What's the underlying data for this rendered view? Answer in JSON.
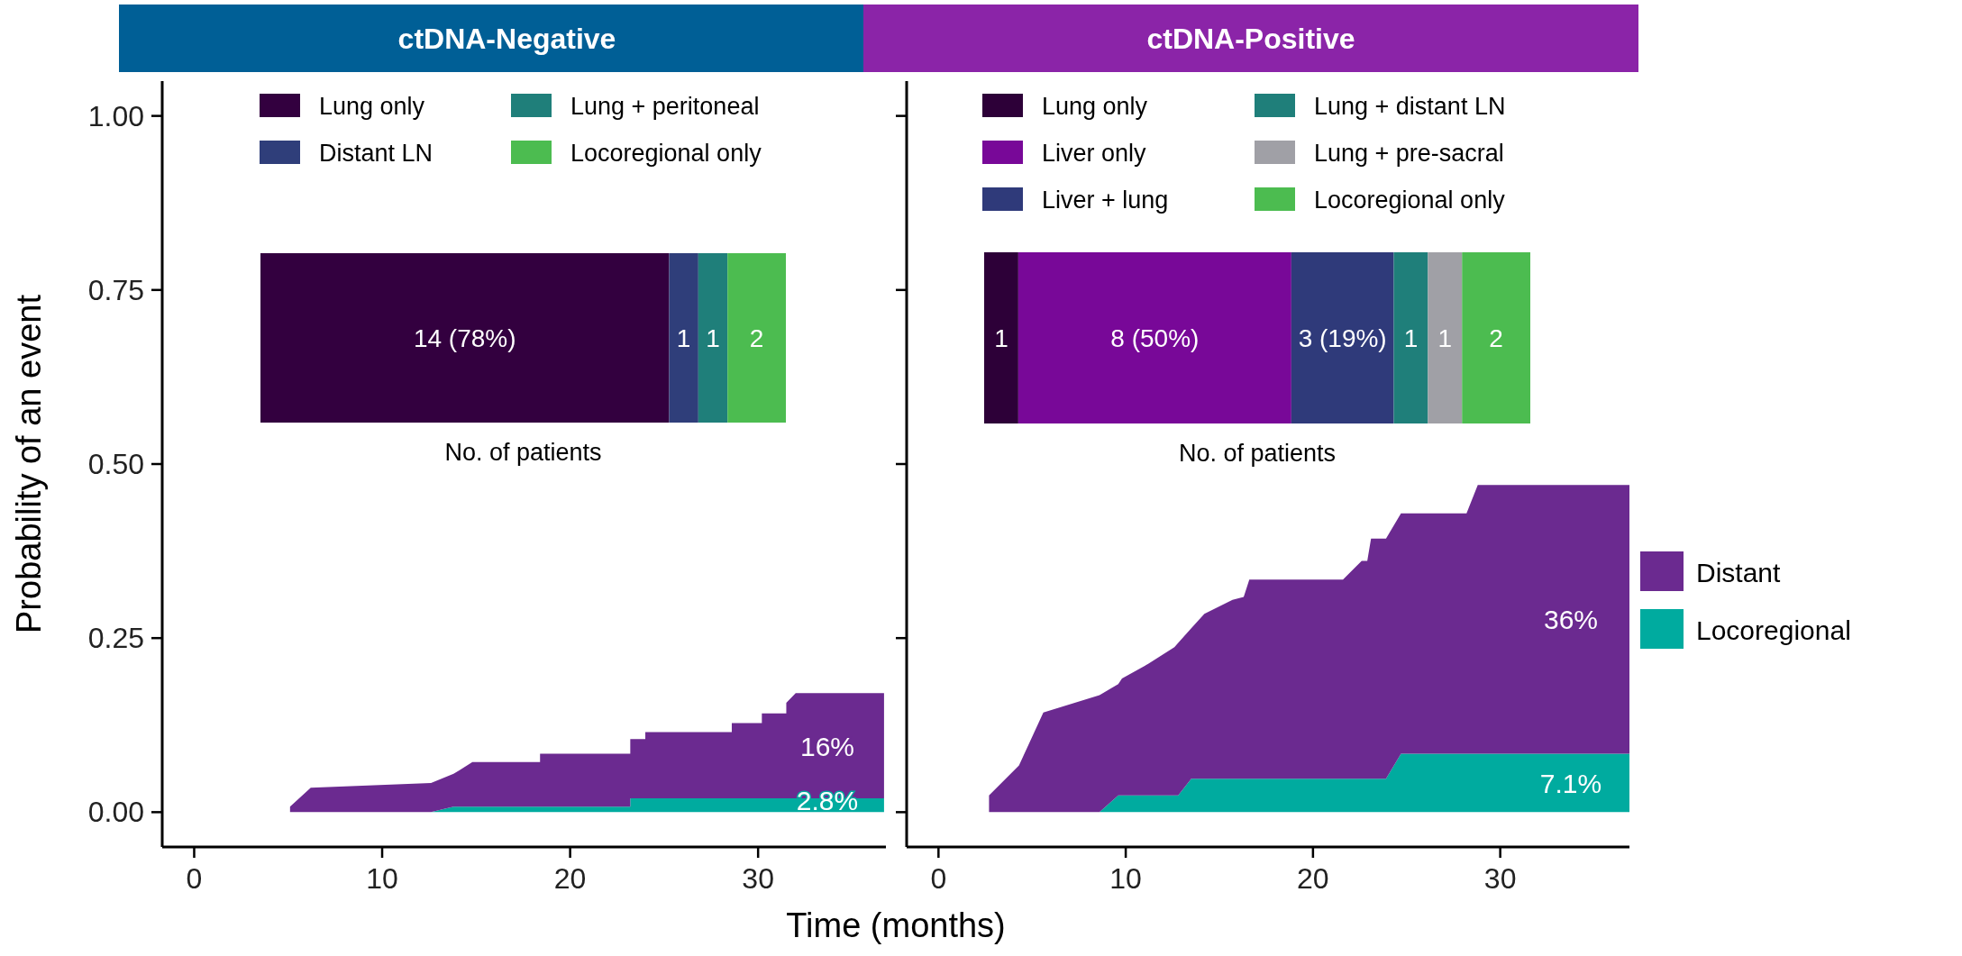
{
  "chart_data": [
    {
      "type": "area",
      "title": "ctDNA-Negative",
      "xlabel": "Time (months)",
      "ylabel": "Probability of an event",
      "stacked": true,
      "legend": false,
      "x": [
        5.1,
        6.2,
        12.6,
        13.8,
        14.8,
        18.4,
        18.4,
        23.2,
        23.2,
        24.0,
        24.0,
        28.6,
        28.6,
        30.2,
        30.2,
        31.5,
        31.5,
        32.0,
        36.7
      ],
      "series": [
        {
          "color": "#00ab9f",
          "values": [
            0,
            0,
            0,
            0.008,
            0.008,
            0.008,
            0.008,
            0.008,
            0.02,
            0.02,
            0.02,
            0.02,
            0.02,
            0.02,
            0.02,
            0.02,
            0.02,
            0.02,
            0.02
          ]
        },
        {
          "color": "#6b2a90",
          "values": [
            0.008,
            0.035,
            0.042,
            0.047,
            0.064,
            0.064,
            0.076,
            0.076,
            0.085,
            0.085,
            0.095,
            0.095,
            0.108,
            0.108,
            0.122,
            0.122,
            0.137,
            0.151,
            0.151
          ]
        }
      ],
      "xlim": [
        -1.7,
        36.8
      ],
      "ylim": [
        -0.05,
        1.05
      ],
      "xticks": [
        0,
        10,
        20,
        30
      ],
      "yticks": [
        {
          "value": 0,
          "label": "0.00"
        },
        {
          "value": 0.25,
          "label": "0.25"
        },
        {
          "value": 0.5,
          "label": "0.50"
        },
        {
          "value": 0.75,
          "label": "0.75"
        },
        {
          "value": 1,
          "label": "1.00"
        }
      ],
      "annotations": [
        "16%",
        "2.8%"
      ]
    },
    {
      "type": "area",
      "title": "ctDNA-Positive",
      "stacked": true,
      "legend": "right",
      "tick_labels": "x",
      "x": [
        2.7,
        4.3,
        5.6,
        8.6,
        9.6,
        9.8,
        11.2,
        12.6,
        12.8,
        13.5,
        14.2,
        15.7,
        16.3,
        16.6,
        21.6,
        22.6,
        22.9,
        23.1,
        23.9,
        24.7,
        28.2,
        28.8,
        36.9
      ],
      "series": [
        {
          "name": "Locoregional",
          "color": "#00ab9f",
          "values": [
            0,
            0,
            0,
            0,
            0.024,
            0.024,
            0.024,
            0.024,
            0.024,
            0.048,
            0.048,
            0.048,
            0.048,
            0.048,
            0.048,
            0.048,
            0.048,
            0.048,
            0.048,
            0.084,
            0.084,
            0.084,
            0.084
          ]
        },
        {
          "name": "Distant",
          "color": "#6b2a90",
          "values": [
            0.024,
            0.067,
            0.143,
            0.168,
            0.16,
            0.168,
            0.189,
            0.213,
            0.219,
            0.216,
            0.237,
            0.257,
            0.261,
            0.286,
            0.286,
            0.313,
            0.313,
            0.345,
            0.345,
            0.345,
            0.345,
            0.386,
            0.386
          ]
        }
      ],
      "xlim": [
        -1.7,
        36.9
      ],
      "ylim": [
        -0.05,
        1.05
      ],
      "xticks": [
        0,
        10,
        20,
        30
      ],
      "yticks": [
        {
          "value": 0,
          "label": null
        },
        {
          "value": 0.25,
          "label": null
        },
        {
          "value": 0.5,
          "label": null
        },
        {
          "value": 0.75,
          "label": null
        },
        {
          "value": 1,
          "label": null
        }
      ],
      "annotations": [
        "36%",
        "7.1%"
      ]
    },
    {
      "type": "bar",
      "orientation": "horizontal",
      "stacked": true,
      "legend": "top",
      "xlabel": "No. of patients",
      "categories": [
        null
      ],
      "series": [
        {
          "name": "Lung only",
          "color": "#33003f",
          "values": [
            14
          ],
          "value_labels": [
            "14 (78%)"
          ]
        },
        {
          "name": "Distant LN",
          "color": "#2f3e7a",
          "values": [
            1
          ],
          "value_labels": [
            "1"
          ]
        },
        {
          "name": "Lung + peritoneal",
          "color": "#1f7f7a",
          "values": [
            1
          ],
          "value_labels": [
            "1"
          ]
        },
        {
          "name": "Locoregional only",
          "color": "#4cbc50",
          "values": [
            2
          ],
          "value_labels": [
            "2"
          ]
        }
      ]
    },
    {
      "type": "bar",
      "orientation": "horizontal",
      "stacked": true,
      "legend": "top",
      "xlabel": "No. of patients",
      "categories": [
        null
      ],
      "series": [
        {
          "name": "Lung only",
          "color": "#2d0038",
          "values": [
            1
          ],
          "value_labels": [
            "1"
          ]
        },
        {
          "name": "Liver only",
          "color": "#780898",
          "values": [
            8
          ],
          "value_labels": [
            "8 (50%)"
          ]
        },
        {
          "name": "Liver + lung",
          "color": "#2f3a7a",
          "values": [
            3
          ],
          "value_labels": [
            "3 (19%)"
          ]
        },
        {
          "name": "Lung + distant LN",
          "color": "#1f7f7a",
          "values": [
            1
          ],
          "value_labels": [
            "1"
          ]
        },
        {
          "name": "Lung + pre-sacral",
          "color": "#a0a0a6",
          "values": [
            1
          ],
          "value_labels": [
            "1"
          ]
        },
        {
          "name": "Locoregional only",
          "color": "#4cbc50",
          "values": [
            2
          ],
          "value_labels": [
            "2"
          ]
        }
      ]
    }
  ]
}
